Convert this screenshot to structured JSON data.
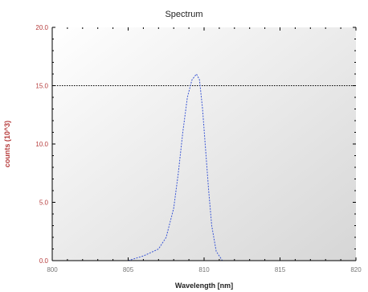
{
  "chart_data": {
    "type": "line",
    "title": "Spectrum",
    "xlabel": "Wavelength [nm]",
    "ylabel": "counts (10^3)",
    "xlim": [
      800,
      820
    ],
    "ylim": [
      0,
      20
    ],
    "x_ticks": [
      800,
      805,
      810,
      815,
      820
    ],
    "x_tick_labels": [
      "800",
      "805",
      "810",
      "815",
      "820"
    ],
    "y_ticks": [
      0,
      5,
      10,
      15,
      20
    ],
    "y_tick_labels": [
      "0.0",
      "5.0",
      "10.0",
      "15.0",
      "20.0"
    ],
    "reference_line": {
      "y": 15
    },
    "grid": false,
    "legend": "none",
    "series": [
      {
        "x": [
          805.0,
          805.5,
          806.0,
          806.5,
          807.0,
          807.5,
          808.0,
          808.3,
          808.6,
          808.9,
          809.2,
          809.5,
          809.7,
          809.9,
          810.1,
          810.3,
          810.5,
          810.8,
          811.2
        ],
        "y": [
          0.0,
          0.2,
          0.4,
          0.7,
          1.0,
          2.0,
          4.5,
          7.5,
          11.0,
          14.0,
          15.5,
          16.0,
          15.5,
          13.0,
          9.5,
          6.0,
          3.0,
          0.8,
          0.0
        ]
      }
    ],
    "colors": {
      "plot_background_top": "#ffffff",
      "plot_background_bottom": "#d6d6d6",
      "axis": "#000000",
      "series_line": "#3a56d4",
      "reference_line": "#000000",
      "y_axis_text": "#b53a3a",
      "tick_text": "#777777"
    }
  }
}
